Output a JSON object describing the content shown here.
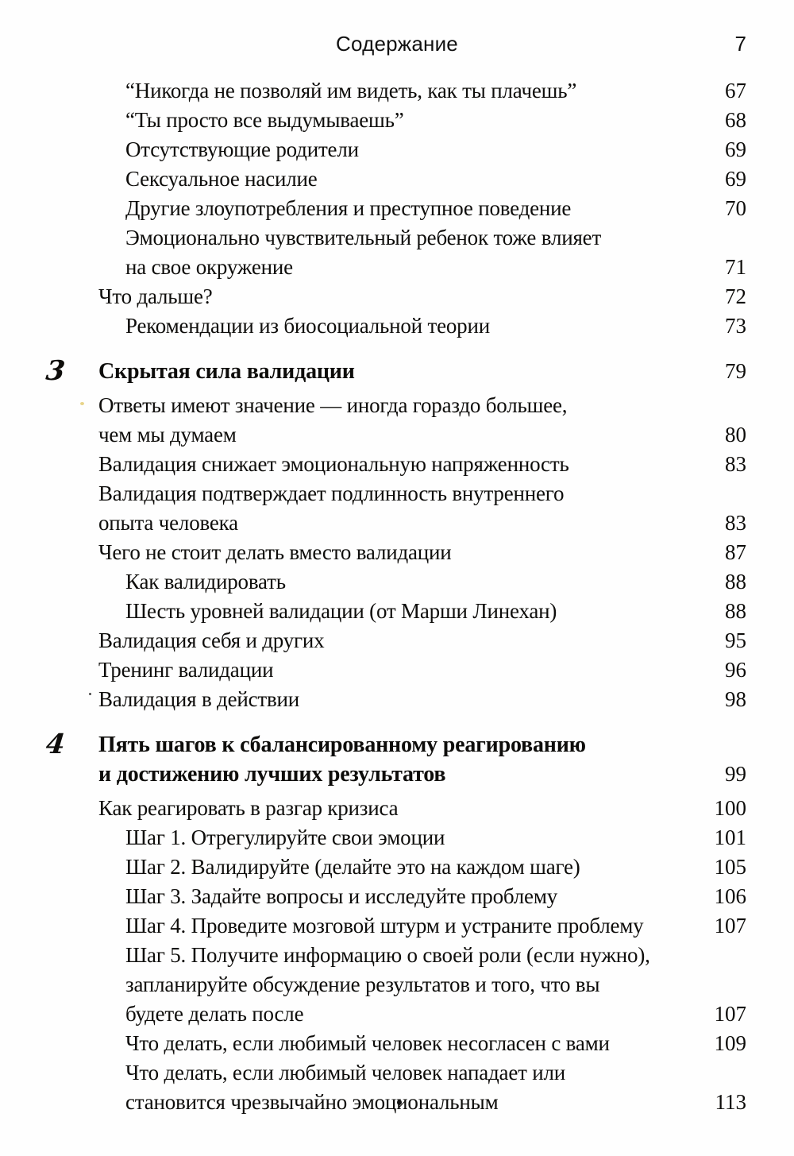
{
  "header": {
    "title": "Содержание",
    "page_number": "7"
  },
  "entries": [
    {
      "level": "sub",
      "lines": [
        "“Никогда не позволяй им видеть, как ты плачешь”"
      ],
      "page": "67"
    },
    {
      "level": "sub",
      "lines": [
        "“Ты просто все выдумываешь”"
      ],
      "page": "68"
    },
    {
      "level": "sub",
      "lines": [
        "Отсутствующие родители"
      ],
      "page": "69"
    },
    {
      "level": "sub",
      "lines": [
        "Сексуальное насилие"
      ],
      "page": "69"
    },
    {
      "level": "sub",
      "lines": [
        "Другие злоупотребления и преступное поведение"
      ],
      "page": "70"
    },
    {
      "level": "sub",
      "lines": [
        "Эмоционально чувствительный ребенок тоже влияет",
        "на свое окружение"
      ],
      "page": "71"
    },
    {
      "level": "section",
      "lines": [
        "Что дальше?"
      ],
      "page": "72"
    },
    {
      "level": "sub",
      "lines": [
        "Рекомендации из биосоциальной теории"
      ],
      "page": "73"
    },
    {
      "level": "chapter",
      "number": "3",
      "lines": [
        "Скрытая сила валидации"
      ],
      "page": "79"
    },
    {
      "level": "section",
      "lines": [
        "Ответы имеют значение — иногда гораздо большее,",
        "чем мы думаем"
      ],
      "page": "80"
    },
    {
      "level": "section",
      "lines": [
        "Валидация снижает эмоциональную напряженность"
      ],
      "page": "83"
    },
    {
      "level": "section",
      "lines": [
        "Валидация подтверждает подлинность внутреннего",
        "опыта человека"
      ],
      "page": "83"
    },
    {
      "level": "section",
      "lines": [
        "Чего не стоит делать вместо валидации"
      ],
      "page": "87"
    },
    {
      "level": "sub",
      "lines": [
        "Как валидировать"
      ],
      "page": "88"
    },
    {
      "level": "sub",
      "lines": [
        "Шесть уровней валидации (от Марши Линехан)"
      ],
      "page": "88"
    },
    {
      "level": "section",
      "lines": [
        "Валидация себя и других"
      ],
      "page": "95"
    },
    {
      "level": "section",
      "lines": [
        "Тренинг валидации"
      ],
      "page": "96"
    },
    {
      "level": "section",
      "lines": [
        "Валидация в действии"
      ],
      "page": "98"
    },
    {
      "level": "chapter",
      "number": "4",
      "lines": [
        "Пять шагов к сбалансированному реагированию",
        "и достижению лучших результатов"
      ],
      "page": "99"
    },
    {
      "level": "section",
      "lines": [
        "Как реагировать в разгар кризиса"
      ],
      "page": "100"
    },
    {
      "level": "sub",
      "lines": [
        "Шаг 1. Отрегулируйте свои эмоции"
      ],
      "page": "101"
    },
    {
      "level": "sub",
      "lines": [
        "Шаг 2. Валидируйте (делайте это на каждом шаге)"
      ],
      "page": "105"
    },
    {
      "level": "sub",
      "lines": [
        "Шаг 3. Задайте вопросы и исследуйте проблему"
      ],
      "page": "106"
    },
    {
      "level": "sub",
      "lines": [
        "Шаг 4. Проведите мозговой штурм и устраните проблему"
      ],
      "page": "107"
    },
    {
      "level": "sub",
      "lines": [
        "Шаг 5. Получите информацию о своей роли (если нужно),",
        "запланируйте обсуждение результатов и того, что вы",
        "будете делать после"
      ],
      "page": "107"
    },
    {
      "level": "sub",
      "lines": [
        "Что делать, если любимый человек несогласен с вами"
      ],
      "page": "109"
    },
    {
      "level": "sub",
      "lines": [
        "Что делать, если любимый человек нападает или",
        "становится чрезвычайно эмоциональным"
      ],
      "page": "113"
    }
  ]
}
